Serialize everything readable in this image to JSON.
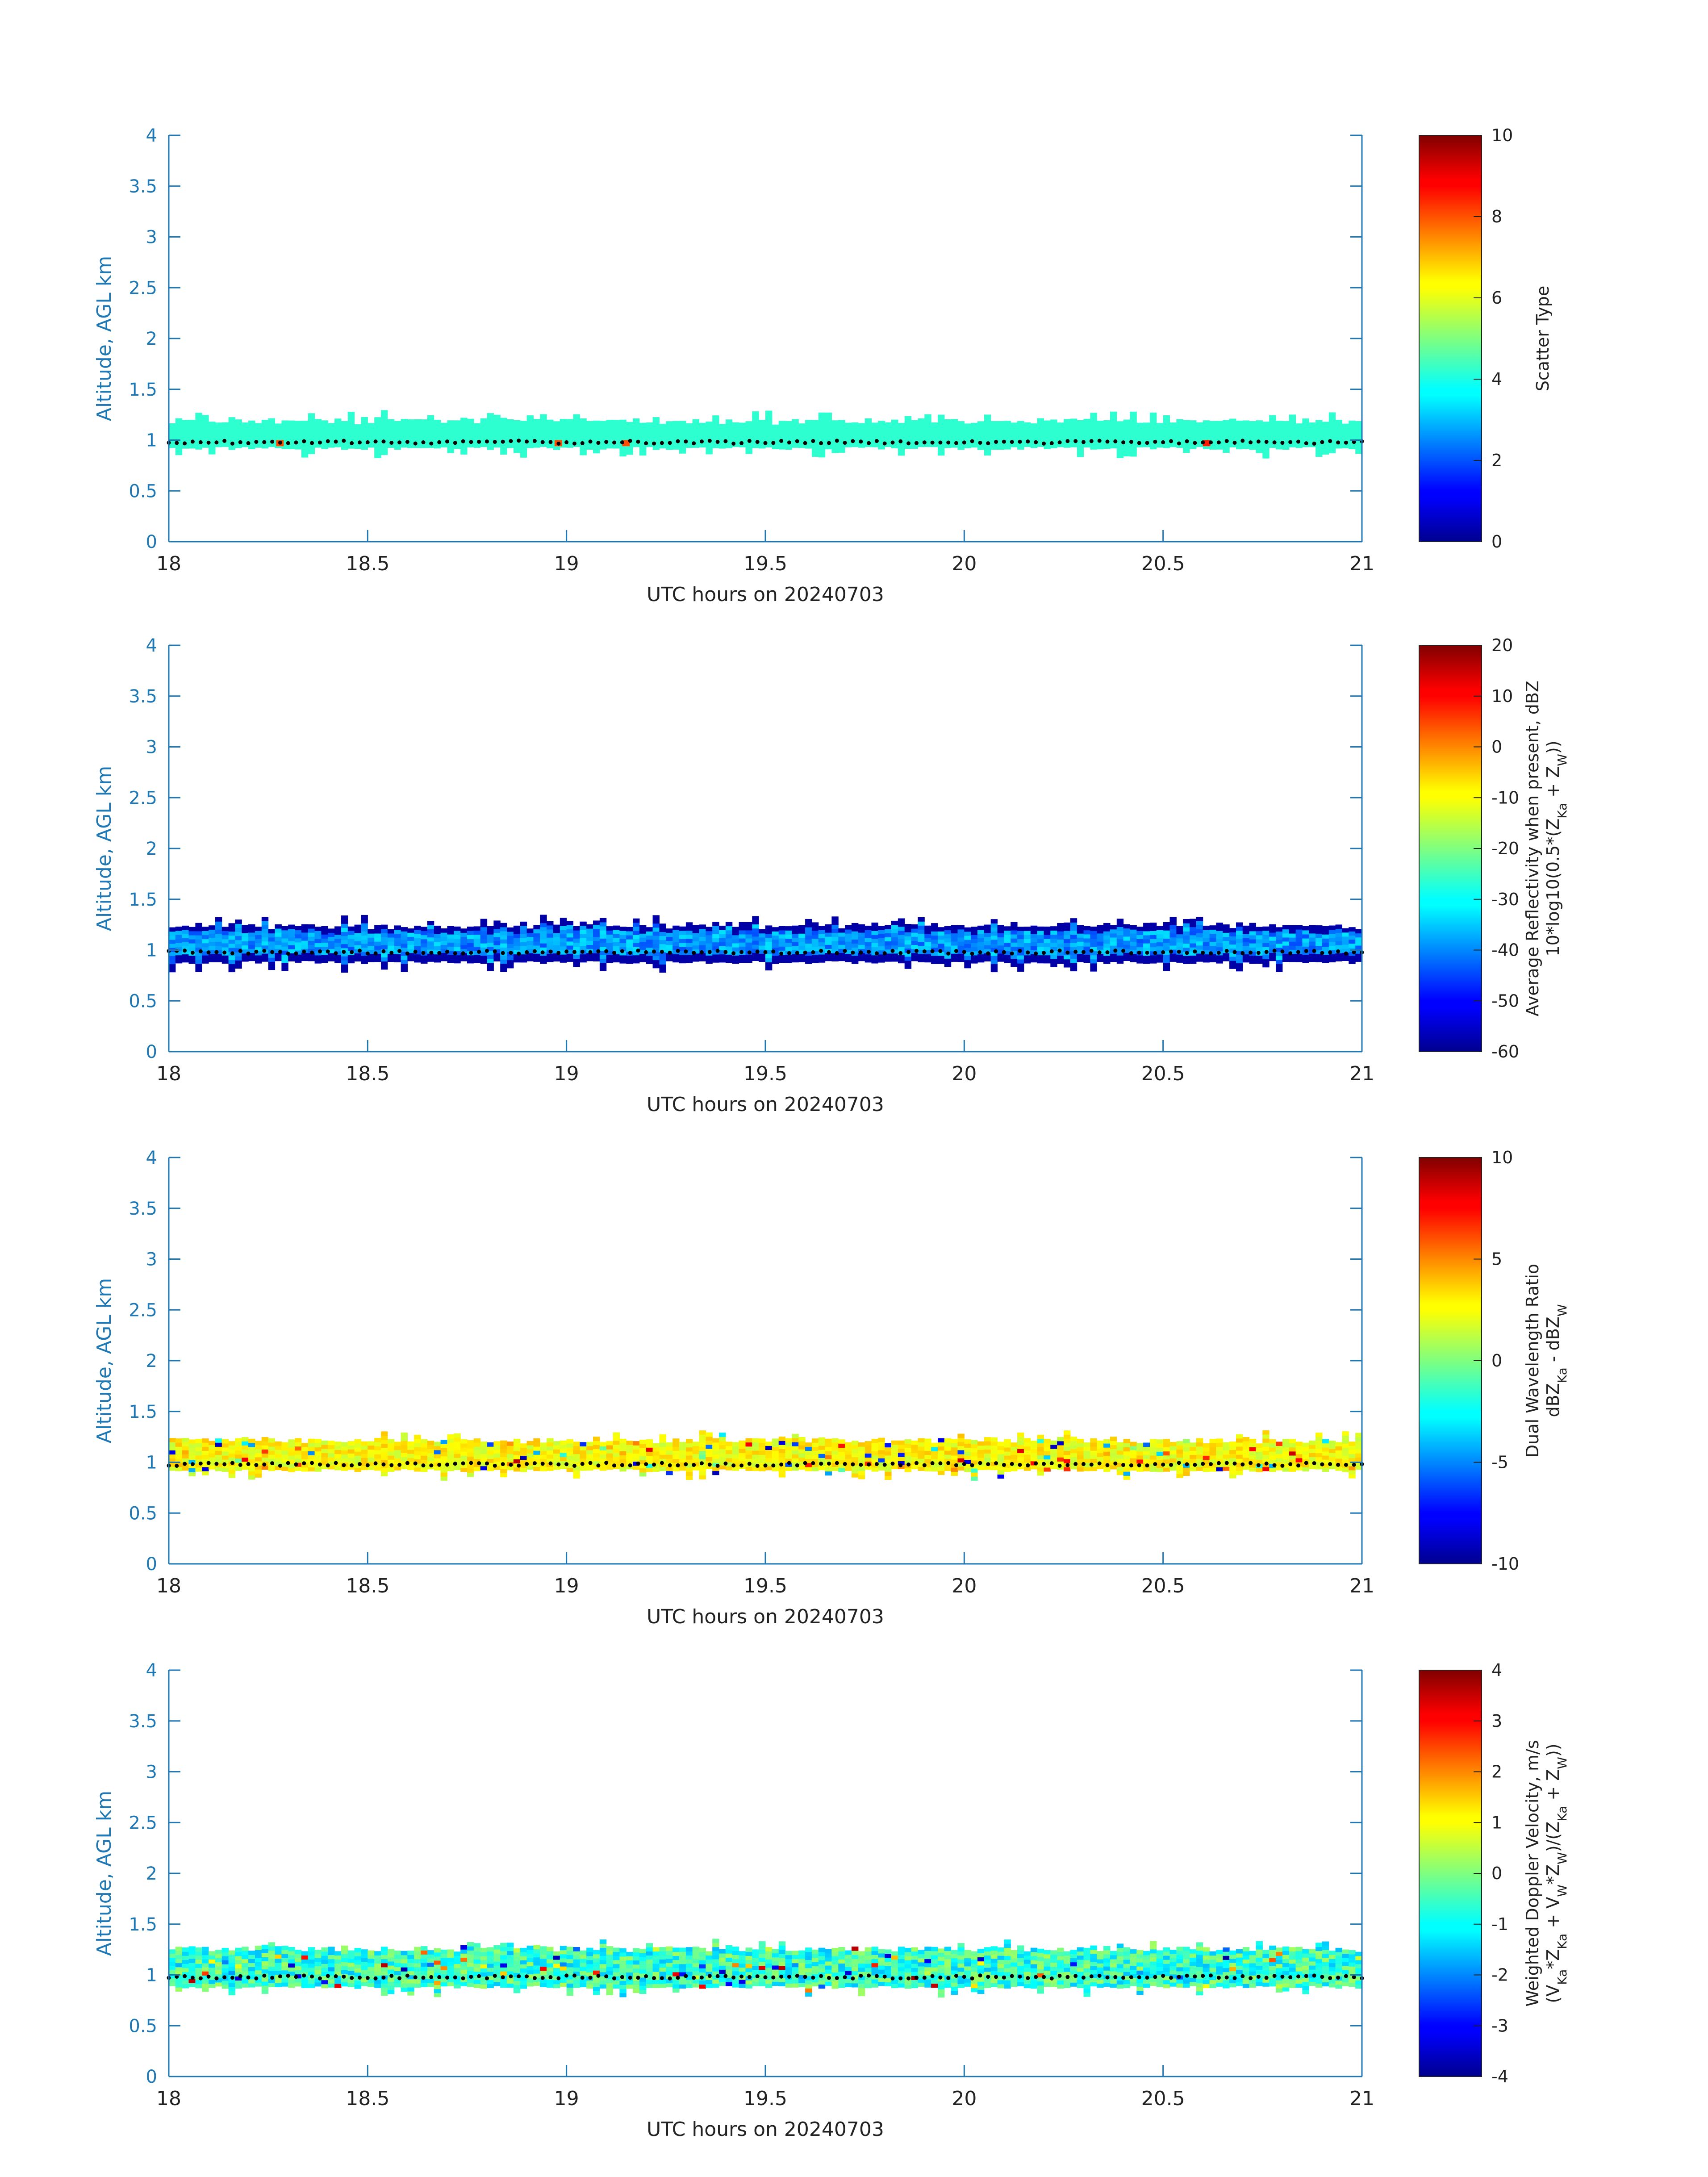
{
  "figure": {
    "background": "#ffffff",
    "axis_color": "#1f78b4",
    "text_color": "#222222"
  },
  "chart_data": [
    {
      "type": "heatmap",
      "id": "scatter-type",
      "xlabel": "UTC hours on 20240703",
      "ylabel": "Altitude, AGL km",
      "xlim": [
        18,
        21
      ],
      "ylim": [
        0,
        4
      ],
      "xticks": [
        "18",
        "18.5",
        "19",
        "19.5",
        "20",
        "20.5",
        "21"
      ],
      "yticks": [
        "0",
        "0.5",
        "1",
        "1.5",
        "2",
        "2.5",
        "3",
        "3.5",
        "4"
      ],
      "colorbar": {
        "label_lines": [
          "Scatter Type"
        ],
        "ticks": [
          "0",
          "2",
          "4",
          "6",
          "8",
          "10"
        ],
        "range": [
          0,
          10
        ]
      },
      "layer": {
        "bottom_km": 0.92,
        "top_km": 1.17,
        "value": 4.2,
        "noise": 0.0
      },
      "cloud_base_marker": {
        "altitude_km": 0.98,
        "color": "#000000"
      },
      "outliers": [
        {
          "x": 18.27,
          "value": 8
        },
        {
          "x": 18.97,
          "value": 8
        },
        {
          "x": 19.14,
          "value": 8
        },
        {
          "x": 20.6,
          "value": 8.5
        }
      ]
    },
    {
      "type": "heatmap",
      "id": "reflectivity",
      "xlabel": "UTC hours on 20240703",
      "ylabel": "Altitude, AGL km",
      "xlim": [
        18,
        21
      ],
      "ylim": [
        0,
        4
      ],
      "xticks": [
        "18",
        "18.5",
        "19",
        "19.5",
        "20",
        "20.5",
        "21"
      ],
      "yticks": [
        "0",
        "0.5",
        "1",
        "1.5",
        "2",
        "2.5",
        "3",
        "3.5",
        "4"
      ],
      "colorbar": {
        "label_lines": [
          "Average Reflectivity when present, dBZ",
          "10*log10(0.5*(Z_Ka + Z_W))"
        ],
        "ticks": [
          "-60",
          "-50",
          "-40",
          "-30",
          "-20",
          "-10",
          "0",
          "10",
          "20"
        ],
        "range": [
          -60,
          20
        ]
      },
      "layer": {
        "bottom_km": 0.88,
        "top_km": 1.22,
        "value": -38,
        "noise": 6
      },
      "edge_value": -57,
      "cloud_base_marker": {
        "altitude_km": 0.98,
        "color": "#000000"
      }
    },
    {
      "type": "heatmap",
      "id": "dual-wavelength-ratio",
      "xlabel": "UTC hours on 20240703",
      "ylabel": "Altitude, AGL km",
      "xlim": [
        18,
        21
      ],
      "ylim": [
        0,
        4
      ],
      "xticks": [
        "18",
        "18.5",
        "19",
        "19.5",
        "20",
        "20.5",
        "21"
      ],
      "yticks": [
        "0",
        "0.5",
        "1",
        "1.5",
        "2",
        "2.5",
        "3",
        "3.5",
        "4"
      ],
      "colorbar": {
        "label_lines": [
          "Dual Wavelength Ratio",
          "dBZ_Ka - dBZ_W"
        ],
        "ticks": [
          "-10",
          "-5",
          "0",
          "5",
          "10"
        ],
        "range": [
          -10,
          10
        ]
      },
      "layer": {
        "bottom_km": 0.92,
        "top_km": 1.2,
        "value": 2.5,
        "noise": 1.2
      },
      "speckle": {
        "probability": 0.09,
        "min": -9,
        "max": 9
      },
      "cloud_base_marker": {
        "altitude_km": 0.98,
        "color": "#000000"
      }
    },
    {
      "type": "heatmap",
      "id": "doppler-velocity",
      "xlabel": "UTC hours on 20240703",
      "ylabel": "Altitude, AGL km",
      "xlim": [
        18,
        21
      ],
      "ylim": [
        0,
        4
      ],
      "xticks": [
        "18",
        "18.5",
        "19",
        "19.5",
        "20",
        "20.5",
        "21"
      ],
      "yticks": [
        "0",
        "0.5",
        "1",
        "1.5",
        "2",
        "2.5",
        "3",
        "3.5",
        "4"
      ],
      "colorbar": {
        "label_lines": [
          "Weighted Doppler Velocity, m/s",
          "(V_Ka*Z_Ka + V_W*Z_W)/(Z_Ka + Z_W))"
        ],
        "ticks": [
          "-4",
          "-3",
          "-2",
          "-1",
          "0",
          "1",
          "2",
          "3",
          "4"
        ],
        "range": [
          -4,
          4
        ]
      },
      "layer": {
        "bottom_km": 0.88,
        "top_km": 1.24,
        "value": -0.6,
        "noise": 0.9
      },
      "speckle": {
        "probability": 0.07,
        "min": -3.8,
        "max": 3.8
      },
      "cloud_base_marker": {
        "altitude_km": 0.98,
        "color": "#000000"
      }
    }
  ]
}
